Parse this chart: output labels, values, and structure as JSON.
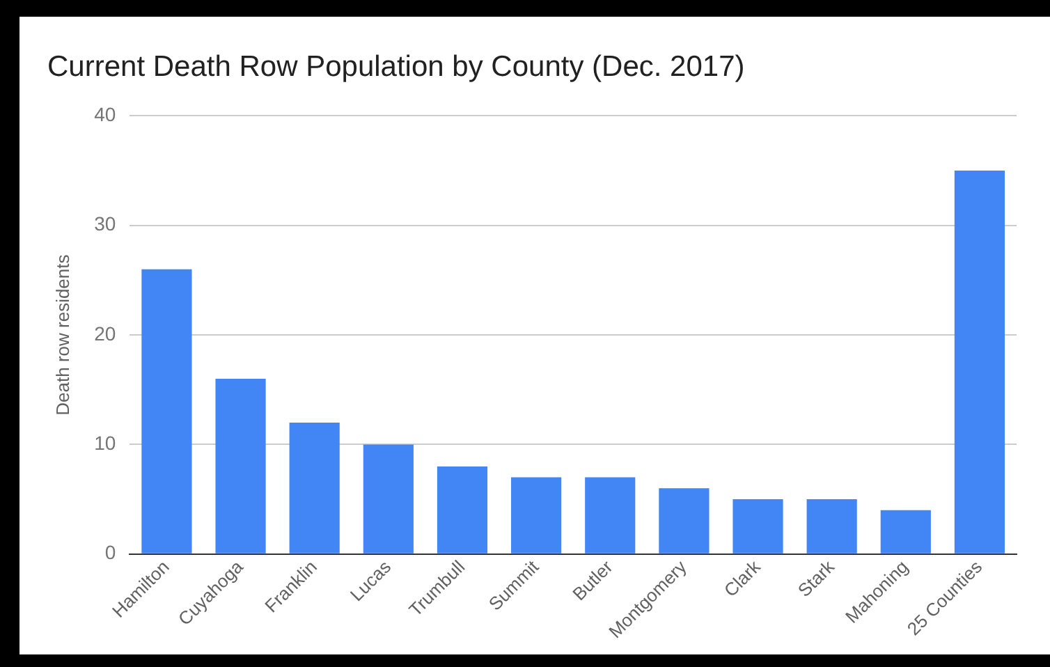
{
  "chart_data": {
    "type": "bar",
    "title": "Current Death Row Population by County (Dec. 2017)",
    "ylabel": "Death row residents",
    "categories": [
      "Hamilton",
      "Cuyahoga",
      "Franklin",
      "Lucas",
      "Trumbull",
      "Summit",
      "Butler",
      "Montgomery",
      "Clark",
      "Stark",
      "Mahoning",
      "25 Counties"
    ],
    "values": [
      26,
      16,
      12,
      10,
      8,
      7,
      7,
      6,
      5,
      5,
      4,
      35
    ],
    "color": "#4285f4",
    "ylim": [
      0,
      40
    ],
    "yticks": [
      0,
      10,
      20,
      30,
      40
    ],
    "grid": "y",
    "legend": false
  }
}
